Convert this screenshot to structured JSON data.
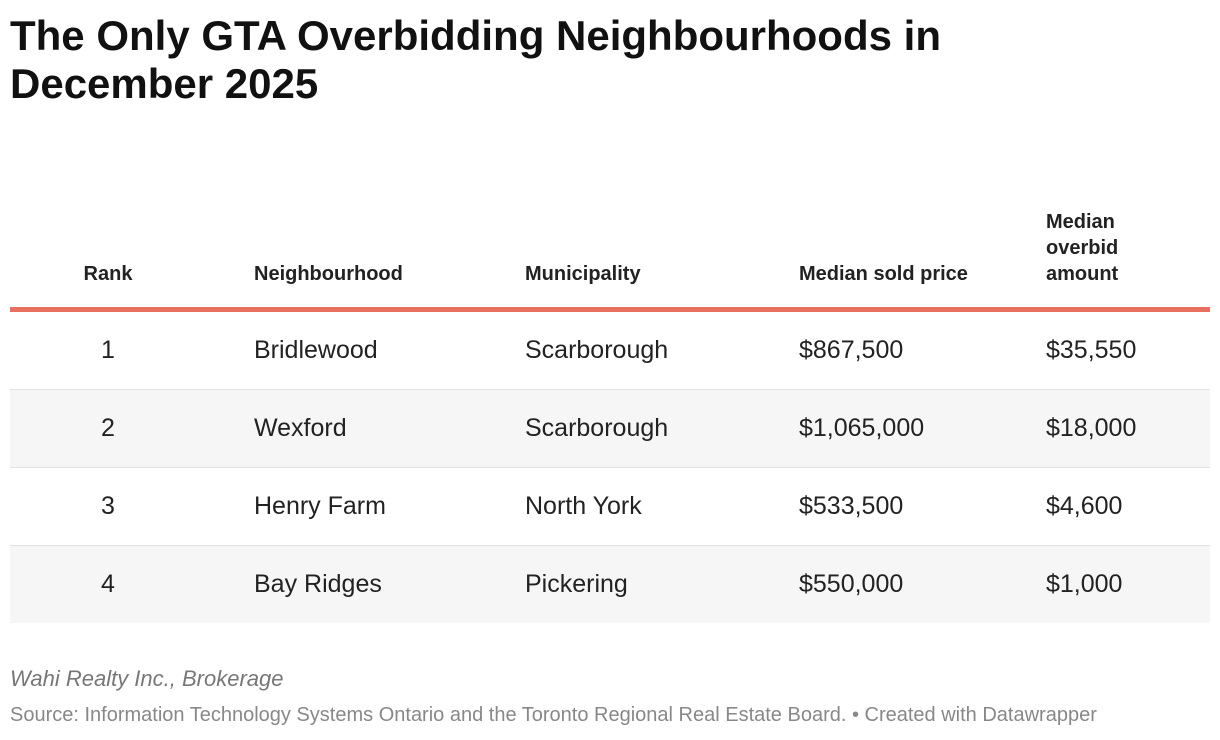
{
  "header": {
    "title": "The Only GTA Overbidding Neighbourhoods in December 2025"
  },
  "table": {
    "columns": [
      "Rank",
      "Neighbourhood",
      "Municipality",
      "Median sold price",
      "Median overbid amount"
    ],
    "rows": [
      [
        "1",
        "Bridlewood",
        "Scarborough",
        "$867,500",
        "$35,550"
      ],
      [
        "2",
        "Wexford",
        "Scarborough",
        "$1,065,000",
        "$18,000"
      ],
      [
        "3",
        "Henry Farm",
        "North York",
        "$533,500",
        "$4,600"
      ],
      [
        "4",
        "Bay Ridges",
        "Pickering",
        "$550,000",
        "$1,000"
      ]
    ]
  },
  "footer": {
    "byline": "Wahi Realty Inc., Brokerage",
    "source": "Source: Information Technology Systems Ontario and the Toronto Regional Real Estate Board. • Created with Datawrapper"
  }
}
